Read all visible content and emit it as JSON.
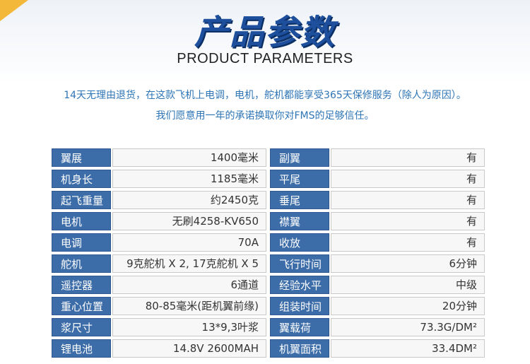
{
  "header": {
    "title_cn": "产品参数",
    "title_en": "PRODUCT PARAMETERS"
  },
  "description": {
    "line1": "14天无理由退货，在这款飞机上电调，电机，舵机都能享受365天保修服务（除人为原因）。",
    "line2": "我们愿意用一年的承诺换取你对FMS的足够信任。"
  },
  "left_params": [
    {
      "label": "翼展",
      "value": "1400毫米"
    },
    {
      "label": "机身长",
      "value": "1185毫米"
    },
    {
      "label": "起飞重量",
      "value": "约2450克"
    },
    {
      "label": "电机",
      "value": "无刷4258-KV650"
    },
    {
      "label": "电调",
      "value": "70A"
    },
    {
      "label": "舵机",
      "value": "9克舵机 X 2, 17克舵机 X 5"
    },
    {
      "label": "遥控器",
      "value": "6通道"
    },
    {
      "label": "重心位置",
      "value": "80-85毫米(距机翼前缘)"
    },
    {
      "label": "浆尺寸",
      "value": "13*9,3叶浆"
    },
    {
      "label": "锂电池",
      "value": "14.8V 2600MAH"
    }
  ],
  "right_params": [
    {
      "label": "副翼",
      "value": "有"
    },
    {
      "label": "平尾",
      "value": "有"
    },
    {
      "label": "垂尾",
      "value": "有"
    },
    {
      "label": "襟翼",
      "value": "有"
    },
    {
      "label": "收放",
      "value": "有"
    },
    {
      "label": "飞行时间",
      "value": "6分钟"
    },
    {
      "label": "经验水平",
      "value": "中级"
    },
    {
      "label": "组装时间",
      "value": "20分钟"
    },
    {
      "label": "翼载荷",
      "value": "73.3G/DM²"
    },
    {
      "label": "机翼面积",
      "value": "33.4DM²"
    }
  ],
  "colors": {
    "label_bg": "#3d6da8",
    "title": "#1d4f9c",
    "desc": "#2e75b6",
    "accent": "#f3b83a"
  }
}
